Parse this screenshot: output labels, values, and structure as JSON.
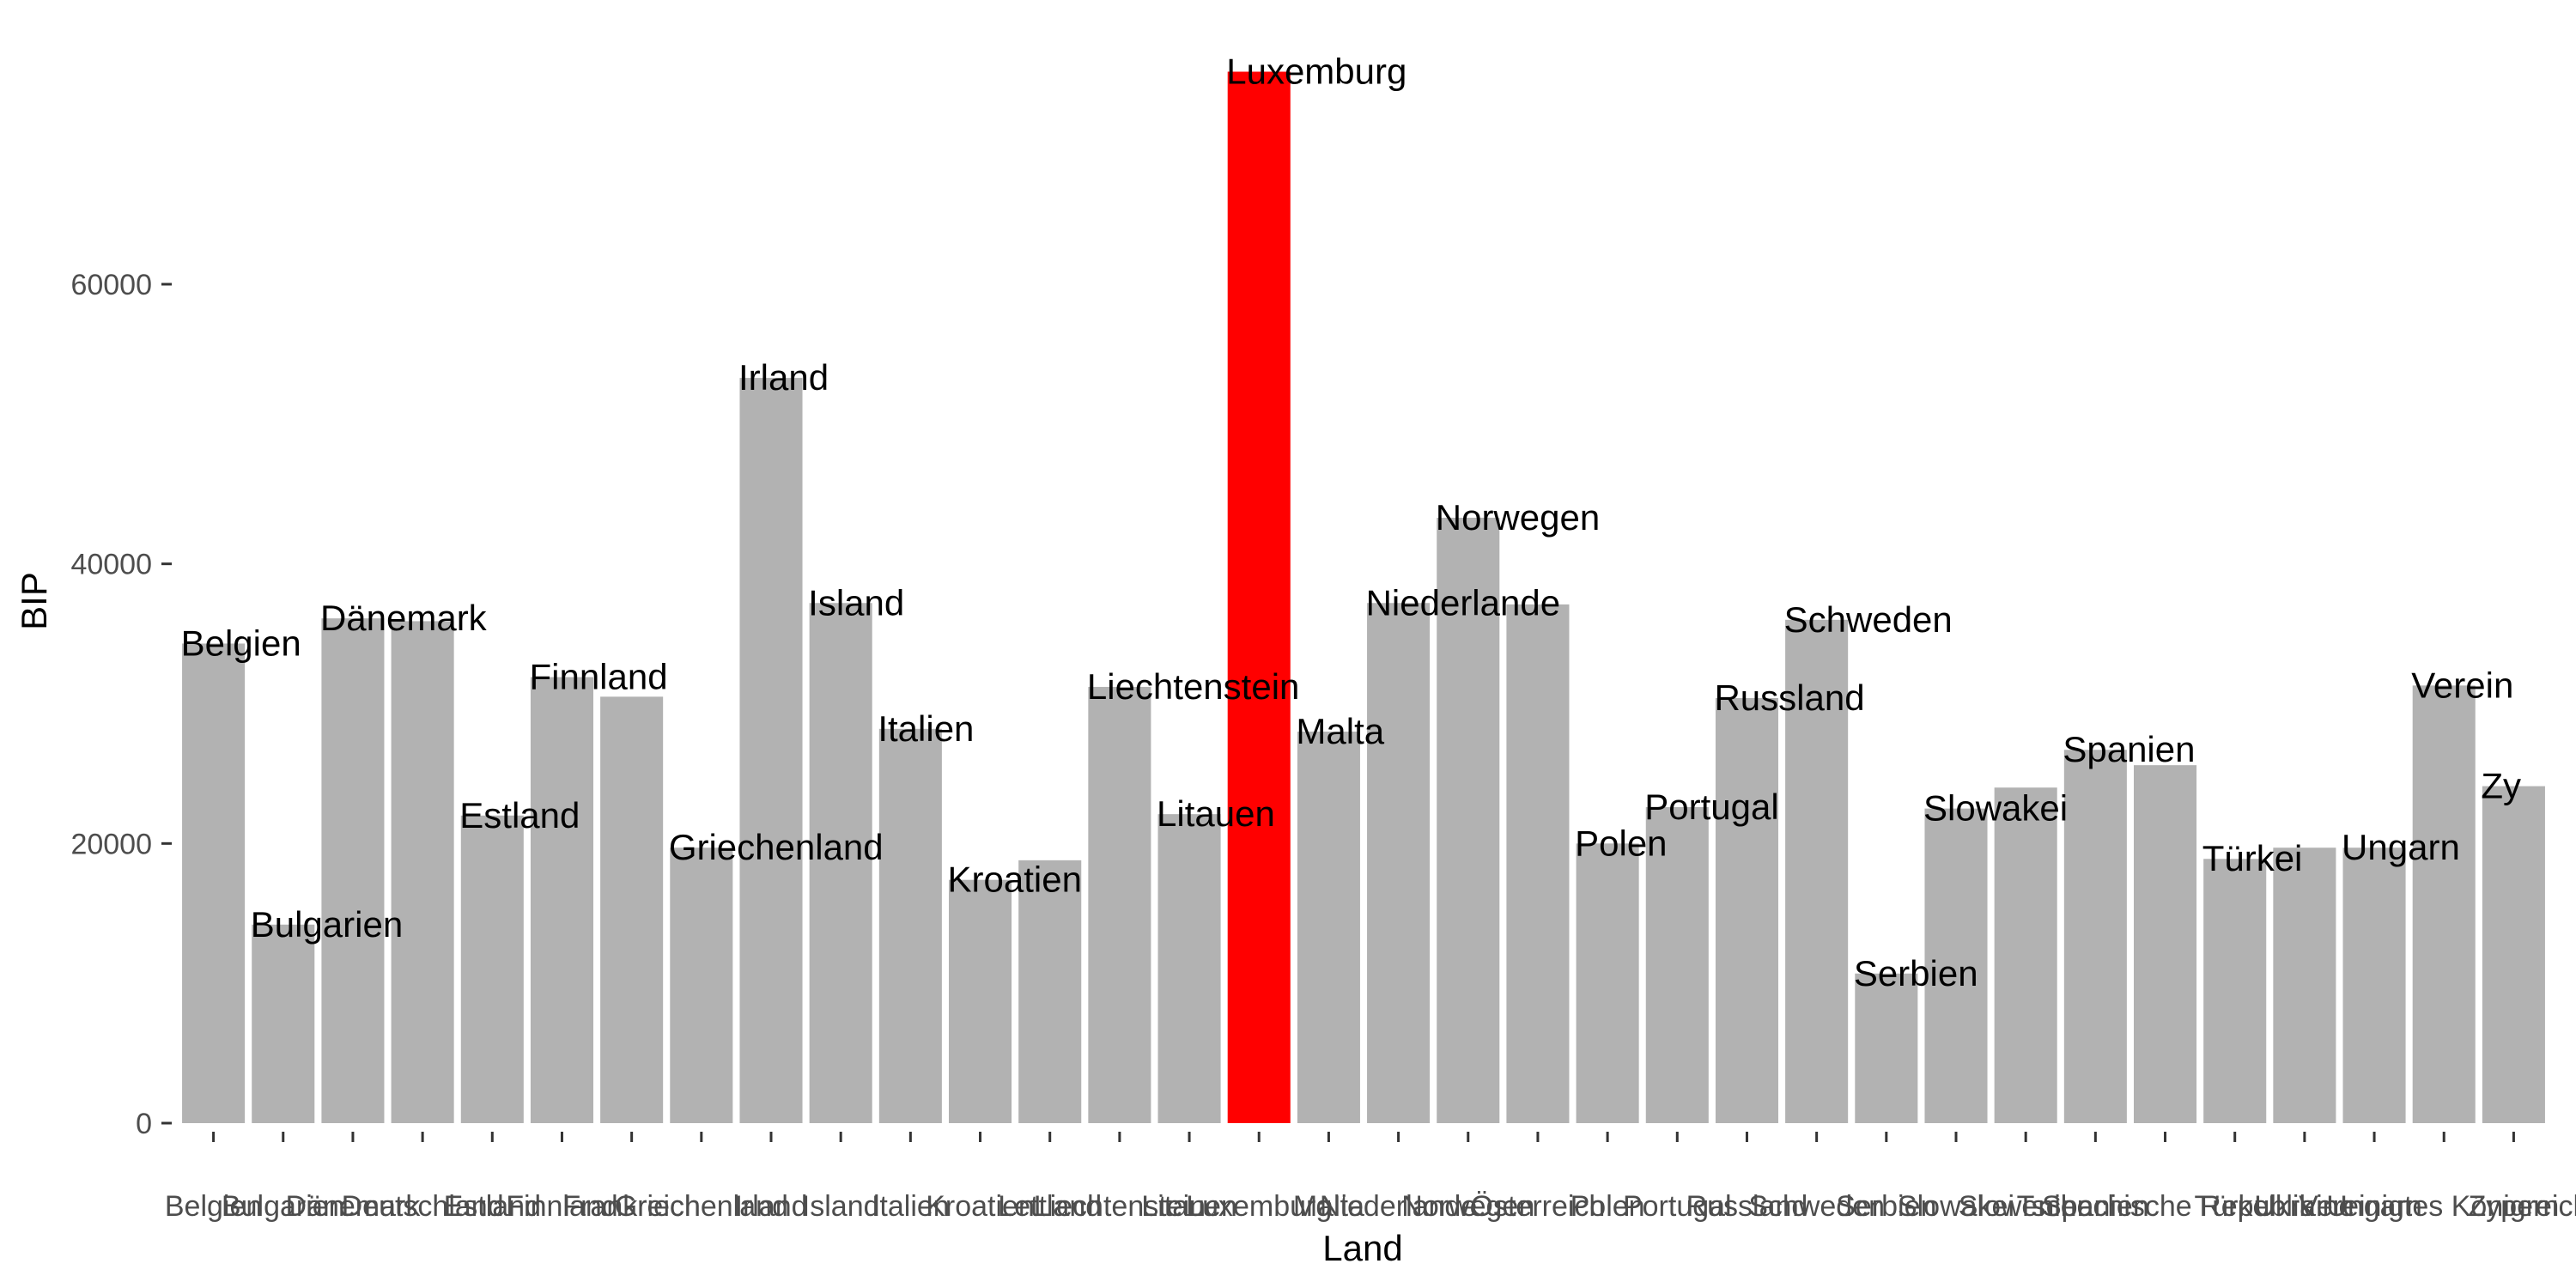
{
  "chart_data": {
    "type": "bar",
    "xlabel": "Land",
    "ylabel": "BIP",
    "ylim": [
      0,
      75000
    ],
    "yticks": [
      0,
      20000,
      40000,
      60000
    ],
    "colors": {
      "default": "#b2b2b2",
      "highlight": "#ff0000"
    },
    "highlight": "Luxemburg",
    "categories": [
      "Belgien",
      "Bulgarien",
      "Dänemark",
      "Deutschland",
      "Estland",
      "Finnland",
      "Frankreich",
      "Griechenland",
      "Irland",
      "Island",
      "Italien",
      "Kroatien",
      "Lettland",
      "Liechtenstein",
      "Litauen",
      "Luxemburg",
      "Malta",
      "Niederlande",
      "Norwegen",
      "Österreich",
      "Polen",
      "Portugal",
      "Russland",
      "Schweden",
      "Serbien",
      "Slowakei",
      "Slowenien",
      "Spanien",
      "Tschechische Republik",
      "Türkei",
      "Ukraine",
      "Ungarn",
      "Vereinigtes Königreich",
      "Zypern"
    ],
    "values": [
      34300,
      14200,
      36100,
      35900,
      22000,
      31900,
      30500,
      19700,
      53300,
      37200,
      28200,
      17400,
      18800,
      31200,
      22100,
      75200,
      28000,
      37200,
      43300,
      37100,
      20000,
      22600,
      30400,
      36000,
      10700,
      22500,
      24000,
      26700,
      25600,
      18900,
      19700,
      19700,
      31300,
      24100
    ],
    "bar_labels": [
      "Belgien",
      "Bulgarien",
      "Dänemark",
      "",
      "Estland",
      "Finnland",
      "",
      "Griechenland",
      "Irland",
      "Island",
      "Italien",
      "Kroatien",
      "",
      "Liechtenstein",
      "Litauen",
      "Luxemburg",
      "Malta",
      "Niederlande",
      "Norwegen",
      "",
      "Polen",
      "Portugal",
      "Russland",
      "Schweden",
      "Serbien",
      "Slowakei",
      "",
      "Spanien",
      "",
      "Türkei",
      "",
      "Ungarn",
      "Verein",
      "Zy"
    ]
  }
}
